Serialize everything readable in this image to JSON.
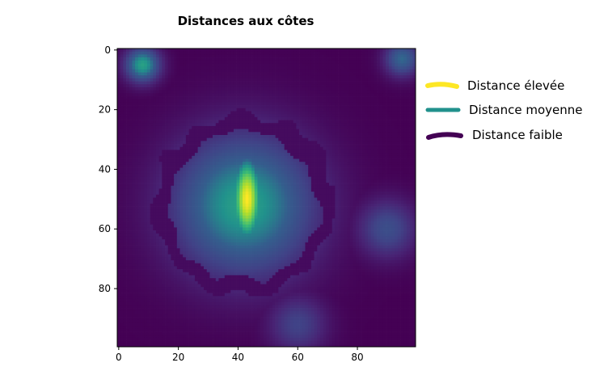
{
  "chart_data": {
    "type": "heatmap",
    "title": "Distances aux côtes",
    "xlabel": "",
    "ylabel": "",
    "xlim": [
      0,
      100
    ],
    "ylim": [
      100,
      0
    ],
    "x_ticks": [
      0,
      20,
      40,
      60,
      80
    ],
    "y_ticks": [
      0,
      20,
      40,
      60,
      80
    ],
    "grid_size": 100,
    "colormap": "viridis",
    "colors": {
      "low": "#440154",
      "mid": "#21918c",
      "high": "#fde725"
    },
    "legend": {
      "placement": "right",
      "entries": [
        {
          "label": "Distance élevée",
          "color": "#fde725"
        },
        {
          "label": "Distance moyenne",
          "color": "#21918c"
        },
        {
          "label": "Distance faible",
          "color": "#440154"
        }
      ]
    },
    "description_values": {
      "peak_region_rows": [
        38,
        62
      ],
      "peak_region_cols": [
        40,
        46
      ]
    }
  }
}
